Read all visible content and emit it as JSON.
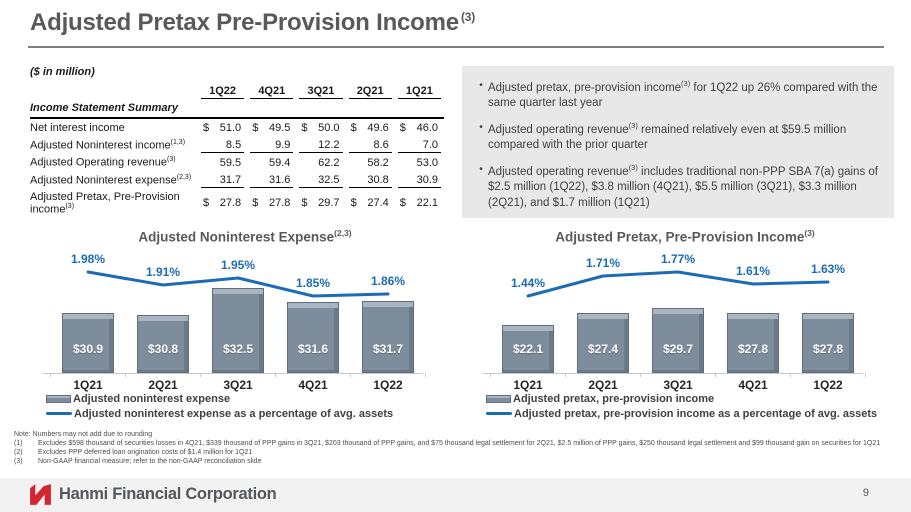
{
  "slide": {
    "title": "Adjusted Pretax Pre-Provision Income",
    "title_sup": "(3)"
  },
  "table": {
    "units_label": "($ in million)",
    "section_label": "Income Statement Summary",
    "dollar": "$",
    "columns": [
      "1Q22",
      "4Q21",
      "3Q21",
      "2Q21",
      "1Q21"
    ],
    "rows": [
      {
        "label": "Net interest income",
        "sup": "",
        "values": [
          "51.0",
          "49.5",
          "50.0",
          "49.6",
          "46.0"
        ]
      },
      {
        "label": "Adjusted Noninterest income",
        "sup": "(1,3)",
        "values": [
          "8.5",
          "9.9",
          "12.2",
          "8.6",
          "7.0"
        ]
      },
      {
        "label": "Adjusted Operating revenue",
        "sup": "(3)",
        "values": [
          "59.5",
          "59.4",
          "62.2",
          "58.2",
          "53.0"
        ]
      },
      {
        "label": "Adjusted Noninterest expense",
        "sup": "(2,3)",
        "values": [
          "31.7",
          "31.6",
          "32.5",
          "30.8",
          "30.9"
        ]
      },
      {
        "label": "Adjusted Pretax, Pre-Provision income",
        "sup": "(3)",
        "values": [
          "27.8",
          "27.8",
          "29.7",
          "27.4",
          "22.1"
        ]
      }
    ]
  },
  "highlights": {
    "marker": "•",
    "bullets": [
      {
        "pre": "Adjusted pretax, pre-provision income",
        "sup": "(3)",
        "post": " for 1Q22 up 26% compared with the same quarter last year"
      },
      {
        "pre": "Adjusted operating revenue",
        "sup": "(3)",
        "post": " remained relatively even at $59.5 million compared with the prior quarter"
      },
      {
        "pre": "Adjusted operating revenue",
        "sup": "(3)",
        "post": " includes traditional non-PPP SBA 7(a) gains of $2.5 million (1Q22), $3.8 million (4Q21), $5.5 million (3Q21), $3.3 million (2Q21), and $1.7 million (1Q21)"
      }
    ]
  },
  "chart_data": [
    {
      "type": "bar",
      "title": "Adjusted Noninterest Expense",
      "title_sup": "(2,3)",
      "categories": [
        "1Q21",
        "2Q21",
        "3Q21",
        "4Q21",
        "1Q22"
      ],
      "series": [
        {
          "name": "Adjusted noninterest expense",
          "type": "bar",
          "values": [
            30.9,
            30.8,
            32.5,
            31.6,
            31.7
          ],
          "labels": [
            "$30.9",
            "$30.8",
            "$32.5",
            "$31.6",
            "$31.7"
          ]
        },
        {
          "name": "Adjusted noninterest expense as a percentage of avg. assets",
          "type": "line",
          "values": [
            1.98,
            1.91,
            1.95,
            1.85,
            1.86
          ],
          "labels": [
            "1.98%",
            "1.91%",
            "1.95%",
            "1.85%",
            "1.86%"
          ]
        }
      ],
      "bar_ylim": [
        27,
        33.5
      ],
      "bar_color": "#7e8d9c",
      "line_color": "#1c6cb5",
      "legend_position": "bottom-left",
      "grid": false
    },
    {
      "type": "bar",
      "title": "Adjusted Pretax, Pre-Provision Income",
      "title_sup": "(3)",
      "categories": [
        "1Q21",
        "2Q21",
        "3Q21",
        "4Q21",
        "1Q22"
      ],
      "series": [
        {
          "name": "Adjusted pretax, pre-provision income",
          "type": "bar",
          "values": [
            22.1,
            27.4,
            29.7,
            27.8,
            27.8
          ],
          "labels": [
            "$22.1",
            "$27.4",
            "$29.7",
            "$27.8",
            "$27.8"
          ]
        },
        {
          "name": "Adjusted pretax, pre-provision income as a percentage of avg. assets",
          "type": "line",
          "values": [
            1.44,
            1.71,
            1.77,
            1.61,
            1.63
          ],
          "labels": [
            "1.44%",
            "1.71%",
            "1.77%",
            "1.61%",
            "1.63%"
          ]
        }
      ],
      "bar_ylim": [
        0,
        46
      ],
      "bar_color": "#7e8d9c",
      "line_color": "#1c6cb5",
      "legend_position": "bottom-left",
      "grid": false
    }
  ],
  "footnotes": {
    "note": "Note: Numbers may not add due to rounding",
    "items": [
      {
        "num": "(1)",
        "text": "Excludes $598 thousand of securities losses in 4Q21, $339 thousand of PPP gains in 3Q21, $203 thousand of PPP gains, and $75 thousand legal settlement for 2Q21, $2.5 million of PPP gains, $250 thousand legal settlement and $99 thousand gain on securities for 1Q21"
      },
      {
        "num": "(2)",
        "text": "Excludes PPP deferred loan origination costs of $1.4 million for 1Q21"
      },
      {
        "num": "(3)",
        "text": "Non-GAAP financial measure; refer to the non-GAAP reconciliation slide"
      }
    ]
  },
  "footer": {
    "company": "Hanmi Financial Corporation",
    "page": "9",
    "brand_red": "#d22630"
  }
}
